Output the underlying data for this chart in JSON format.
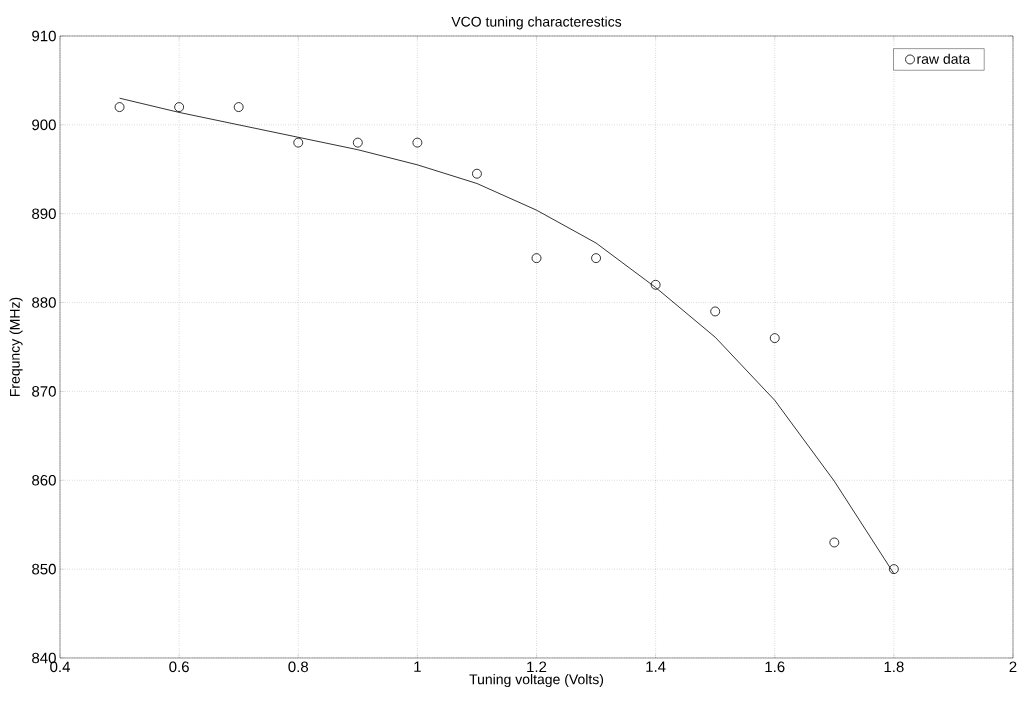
{
  "chart_data": {
    "type": "scatter",
    "title": "VCO tuning characterestics",
    "xlabel": "Tuning voltage (Volts)",
    "ylabel": "Frequncy (MHz)",
    "xlim": [
      0.4,
      2
    ],
    "xticks": [
      0.4,
      0.6,
      0.8,
      1,
      1.2,
      1.4,
      1.6,
      1.8,
      2
    ],
    "ylim": [
      840,
      910
    ],
    "yticks": [
      840,
      850,
      860,
      870,
      880,
      890,
      900,
      910
    ],
    "grid": true,
    "legend": "top right",
    "series": [
      {
        "name": "raw data",
        "marker": "circle",
        "color": "#000000",
        "x": [
          0.5,
          0.6,
          0.7,
          0.8,
          0.9,
          1.0,
          1.1,
          1.2,
          1.3,
          1.4,
          1.5,
          1.6,
          1.7,
          1.8
        ],
        "values": [
          902,
          902,
          902,
          898,
          898,
          898,
          894.5,
          885,
          885,
          882,
          879,
          876,
          853,
          850
        ]
      },
      {
        "type": "line",
        "marker": "none",
        "line_style": "solid",
        "color": "#000000",
        "x": [
          0.5,
          0.6,
          0.7,
          0.8,
          0.9,
          1.0,
          1.1,
          1.2,
          1.3,
          1.4,
          1.5,
          1.6,
          1.7,
          1.8
        ],
        "values": [
          903,
          901.4,
          900,
          898.6,
          897.2,
          895.5,
          893.4,
          890.4,
          886.7,
          881.7,
          876.1,
          869,
          859.9,
          849.5
        ]
      }
    ]
  }
}
